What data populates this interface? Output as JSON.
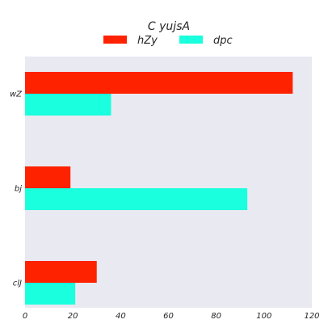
{
  "chart_data": {
    "type": "bar",
    "orientation": "horizontal",
    "title": "C yujsA",
    "xlabel": "",
    "ylabel": "",
    "categories": [
      "wZ",
      "bj",
      "clJ"
    ],
    "series": [
      {
        "name": "hZy",
        "values": [
          112,
          19,
          30
        ],
        "color": "#ff2200"
      },
      {
        "name": "dpc",
        "values": [
          36,
          93,
          21
        ],
        "color": "#1affdd"
      }
    ],
    "xlim": [
      0,
      120
    ],
    "xticks": [
      0,
      20,
      40,
      60,
      80,
      100,
      120
    ],
    "grid": false,
    "legend": "top-center",
    "plot_background": "#e9e9f2"
  }
}
